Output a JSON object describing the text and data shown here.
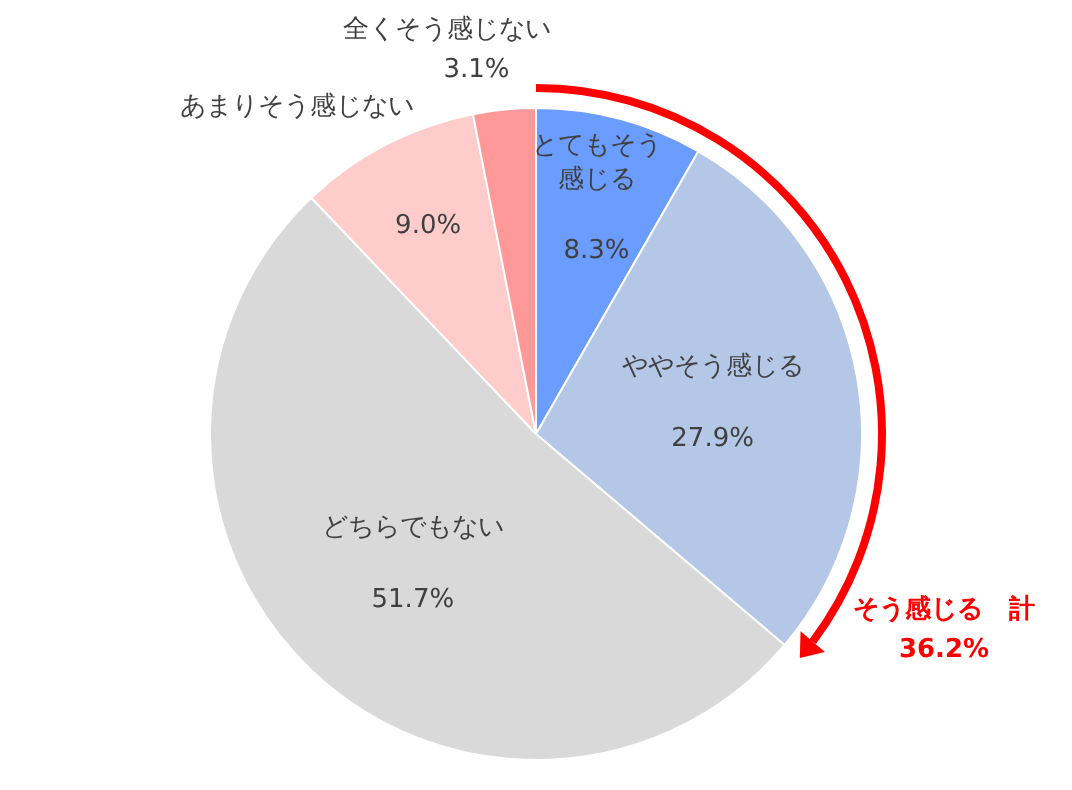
{
  "chart_data": {
    "type": "pie",
    "categories": [
      "とてもそう感じる",
      "ややそう感じる",
      "どちらでもない",
      "あまりそう感じない",
      "全くそう感じない"
    ],
    "values": [
      8.3,
      27.9,
      51.7,
      9.0,
      3.1
    ],
    "value_labels": [
      "8.3%",
      "27.9%",
      "51.7%",
      "9.0%",
      "3.1%"
    ],
    "colors": [
      "#6b9cff",
      "#b4c7e7",
      "#d9d9d9",
      "#ffcccc",
      "#ff9999"
    ],
    "annotations": [
      "そう感じる　計",
      "36.2%"
    ]
  }
}
